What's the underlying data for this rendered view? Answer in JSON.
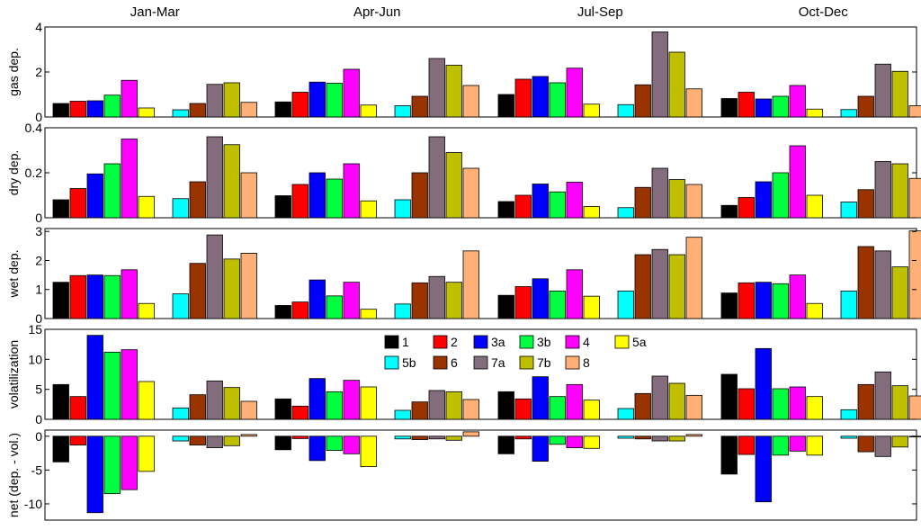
{
  "chart_data": {
    "type": "bar",
    "categories": [
      "Jan-Mar",
      "Apr-Jun",
      "Jul-Sep",
      "Oct-Dec"
    ],
    "legend": {
      "placement": "center-upper-of-volatilization-panel",
      "labels": [
        "1",
        "2",
        "3a",
        "3b",
        "4",
        "5a",
        "5b",
        "6",
        "7a",
        "7b",
        "8"
      ]
    },
    "series": [
      {
        "name": "1",
        "color": "#000000"
      },
      {
        "name": "2",
        "color": "#ff0000"
      },
      {
        "name": "3a",
        "color": "#0000ff"
      },
      {
        "name": "3b",
        "color": "#00ff40"
      },
      {
        "name": "4",
        "color": "#ff00ff"
      },
      {
        "name": "5a",
        "color": "#ffff00"
      },
      {
        "name": "5b",
        "color": "#00ffff"
      },
      {
        "name": "6",
        "color": "#993300"
      },
      {
        "name": "7a",
        "color": "#836c7c"
      },
      {
        "name": "7b",
        "color": "#bfbf00"
      },
      {
        "name": "8",
        "color": "#ffb077"
      }
    ],
    "panels": [
      {
        "ylabel": "gas dep.",
        "ylim": [
          0,
          4
        ],
        "ticks": [
          "0",
          "2",
          "4"
        ],
        "tick_values": [
          0,
          2,
          4
        ],
        "values": [
          [
            0.6,
            0.7,
            0.72,
            0.97,
            1.63,
            0.4,
            0.32,
            0.6,
            1.45,
            1.52,
            0.65
          ],
          [
            0.67,
            1.1,
            1.55,
            1.5,
            2.12,
            0.53,
            0.5,
            0.92,
            2.6,
            2.3,
            1.4
          ],
          [
            1.0,
            1.68,
            1.8,
            1.52,
            2.17,
            0.57,
            0.55,
            1.43,
            3.78,
            2.88,
            1.25
          ],
          [
            0.82,
            1.1,
            0.8,
            0.92,
            1.4,
            0.35,
            0.33,
            0.92,
            2.35,
            2.03,
            0.5
          ]
        ]
      },
      {
        "ylabel": "dry dep.",
        "ylim": [
          0,
          0.4
        ],
        "ticks": [
          "0",
          "0.2",
          "0.4"
        ],
        "tick_values": [
          0,
          0.2,
          0.4
        ],
        "values": [
          [
            0.08,
            0.13,
            0.195,
            0.24,
            0.35,
            0.095,
            0.085,
            0.16,
            0.36,
            0.325,
            0.2
          ],
          [
            0.098,
            0.148,
            0.2,
            0.172,
            0.24,
            0.075,
            0.08,
            0.2,
            0.36,
            0.29,
            0.22
          ],
          [
            0.072,
            0.1,
            0.15,
            0.115,
            0.158,
            0.05,
            0.045,
            0.135,
            0.22,
            0.17,
            0.148
          ],
          [
            0.055,
            0.09,
            0.16,
            0.2,
            0.32,
            0.1,
            0.07,
            0.125,
            0.25,
            0.24,
            0.175
          ]
        ]
      },
      {
        "ylabel": "wet dep.",
        "ylim": [
          0,
          3.1
        ],
        "ticks": [
          "0",
          "1",
          "2",
          "3"
        ],
        "tick_values": [
          0,
          1,
          2,
          3
        ],
        "values": [
          [
            1.25,
            1.48,
            1.5,
            1.48,
            1.68,
            0.52,
            0.85,
            1.9,
            2.88,
            2.05,
            2.25
          ],
          [
            0.45,
            0.57,
            1.33,
            0.78,
            1.25,
            0.32,
            0.5,
            1.23,
            1.45,
            1.25,
            2.33
          ],
          [
            0.8,
            1.1,
            1.37,
            0.95,
            1.68,
            0.77,
            0.95,
            2.2,
            2.38,
            2.2,
            2.8
          ],
          [
            0.88,
            1.23,
            1.25,
            1.2,
            1.5,
            0.52,
            0.95,
            2.48,
            2.33,
            1.78,
            3.02
          ]
        ]
      },
      {
        "ylabel": "volatilization",
        "ylim": [
          0,
          15
        ],
        "ticks": [
          "0",
          "5",
          "10",
          "15"
        ],
        "tick_values": [
          0,
          5,
          10,
          15
        ],
        "values": [
          [
            5.8,
            3.8,
            14.0,
            11.2,
            11.6,
            6.3,
            1.9,
            4.1,
            6.4,
            5.3,
            3.0
          ],
          [
            3.4,
            2.2,
            6.8,
            4.6,
            6.5,
            5.4,
            1.5,
            2.9,
            4.8,
            4.6,
            3.3
          ],
          [
            4.6,
            3.4,
            7.1,
            3.8,
            5.8,
            3.2,
            1.8,
            4.3,
            7.2,
            6.0,
            4.0
          ],
          [
            7.5,
            5.1,
            11.8,
            5.1,
            5.4,
            3.8,
            1.6,
            5.8,
            7.9,
            5.6,
            3.9
          ]
        ]
      },
      {
        "ylabel": "net (dep. - vol.)",
        "ylim": [
          -12.4,
          0.9
        ],
        "ticks": [
          "0",
          "-5",
          "-10"
        ],
        "tick_values": [
          0,
          -5,
          -10
        ],
        "values": [
          [
            -3.8,
            -1.3,
            -11.3,
            -8.5,
            -7.9,
            -5.2,
            -0.7,
            -1.3,
            -1.7,
            -1.4,
            0.25
          ],
          [
            -2.0,
            -0.35,
            -3.6,
            -2.1,
            -2.6,
            -4.5,
            -0.4,
            -0.5,
            -0.4,
            -0.6,
            0.65
          ],
          [
            -2.6,
            -0.4,
            -3.7,
            -1.2,
            -1.7,
            -1.8,
            -0.3,
            -0.4,
            -0.7,
            -0.7,
            0.25
          ],
          [
            -5.6,
            -2.7,
            -9.7,
            -2.8,
            -2.2,
            -2.8,
            -0.3,
            -2.3,
            -3.0,
            -1.6,
            -0.1
          ]
        ]
      }
    ]
  }
}
